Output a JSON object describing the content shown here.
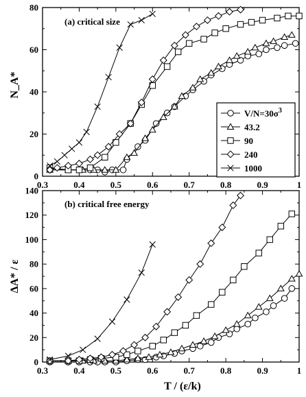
{
  "chart_data": [
    {
      "type": "line",
      "title": "(a) critical size",
      "xlabel": "",
      "ylabel": "N_A*",
      "xlim": [
        0.3,
        1.0
      ],
      "ylim": [
        0,
        80
      ],
      "xticks": [
        "0.3",
        "0.4",
        "0.5",
        "0.6",
        "0.7",
        "0.8",
        "0.9",
        "1"
      ],
      "yticks": [
        "0",
        "20",
        "40",
        "60",
        "80"
      ],
      "legend_position": "center-right",
      "series": [
        {
          "name": "V/N=30σ³",
          "legend_main": "V/N=30σ",
          "legend_sup": "3",
          "marker": "circle",
          "x": [
            0.32,
            0.43,
            0.45,
            0.47,
            0.49,
            0.52,
            0.53,
            0.56,
            0.58,
            0.61,
            0.64,
            0.66,
            0.69,
            0.71,
            0.74,
            0.76,
            0.79,
            0.81,
            0.84,
            0.86,
            0.89,
            0.91,
            0.94,
            0.96,
            0.99
          ],
          "y": [
            3,
            3,
            3,
            2,
            3,
            3,
            8,
            14,
            17,
            25,
            30,
            33,
            38,
            41,
            45,
            48,
            51,
            53,
            55,
            57,
            58,
            60,
            61,
            62,
            63
          ]
        },
        {
          "name": "43.2",
          "marker": "triangle",
          "x": [
            0.32,
            0.37,
            0.41,
            0.44,
            0.47,
            0.5,
            0.53,
            0.55,
            0.58,
            0.6,
            0.63,
            0.66,
            0.68,
            0.71,
            0.73,
            0.76,
            0.78,
            0.81,
            0.83,
            0.86,
            0.88,
            0.91,
            0.93,
            0.96,
            0.98
          ],
          "y": [
            3,
            3,
            3,
            3,
            3,
            3,
            9,
            11,
            18,
            22,
            28,
            33,
            38,
            42,
            46,
            49,
            52,
            55,
            57,
            59,
            61,
            63,
            64,
            66,
            67
          ]
        },
        {
          "name": "90",
          "marker": "square",
          "x": [
            0.32,
            0.37,
            0.4,
            0.43,
            0.47,
            0.5,
            0.54,
            0.57,
            0.6,
            0.64,
            0.67,
            0.7,
            0.74,
            0.77,
            0.8,
            0.84,
            0.87,
            0.9,
            0.94,
            0.97,
            1.0
          ],
          "y": [
            4,
            3,
            3,
            4,
            9,
            16,
            25,
            34,
            43,
            52,
            59,
            63,
            65,
            68,
            70,
            72,
            73,
            74,
            75,
            76,
            76
          ]
        },
        {
          "name": "240",
          "marker": "diamond",
          "x": [
            0.32,
            0.34,
            0.37,
            0.4,
            0.43,
            0.45,
            0.48,
            0.51,
            0.54,
            0.57,
            0.6,
            0.63,
            0.66,
            0.69,
            0.72,
            0.75,
            0.78,
            0.81,
            0.84
          ],
          "y": [
            3,
            4,
            5,
            6,
            8,
            10,
            14,
            20,
            25,
            35,
            46,
            55,
            62,
            67,
            71,
            74,
            76,
            78,
            79
          ]
        },
        {
          "name": "1000",
          "marker": "cross",
          "x": [
            0.32,
            0.34,
            0.36,
            0.38,
            0.4,
            0.42,
            0.45,
            0.48,
            0.51,
            0.54,
            0.57,
            0.6
          ],
          "y": [
            5,
            7,
            10,
            13,
            16,
            21,
            33,
            47,
            61,
            72,
            74,
            77
          ]
        }
      ]
    },
    {
      "type": "line",
      "title": "(b) critical free energy",
      "xlabel": "T / (ε/k)",
      "ylabel": "ΔA* / ε",
      "xlim": [
        0.3,
        1.0
      ],
      "ylim": [
        0,
        140
      ],
      "xticks": [
        "0.3",
        "0.4",
        "0.5",
        "0.6",
        "0.7",
        "0.8",
        "0.9",
        "1"
      ],
      "yticks": [
        "0",
        "20",
        "40",
        "60",
        "80",
        "100",
        "120",
        "140"
      ],
      "series": [
        {
          "name": "V/N=30σ³",
          "marker": "circle",
          "x": [
            0.32,
            0.37,
            0.4,
            0.43,
            0.45,
            0.47,
            0.5,
            0.53,
            0.56,
            0.58,
            0.61,
            0.63,
            0.66,
            0.68,
            0.71,
            0.73,
            0.76,
            0.78,
            0.81,
            0.83,
            0.86,
            0.88,
            0.91,
            0.93,
            0.96,
            0.98
          ],
          "y": [
            0,
            0,
            0,
            0,
            0,
            0,
            0,
            1,
            2,
            2,
            4,
            5,
            7,
            9,
            11,
            13,
            16,
            20,
            23,
            27,
            31,
            36,
            41,
            46,
            52,
            60
          ]
        },
        {
          "name": "43.2",
          "marker": "triangle",
          "x": [
            0.32,
            0.37,
            0.41,
            0.44,
            0.47,
            0.5,
            0.53,
            0.56,
            0.59,
            0.62,
            0.65,
            0.68,
            0.71,
            0.74,
            0.77,
            0.8,
            0.83,
            0.86,
            0.89,
            0.92,
            0.95,
            0.98,
            1.0
          ],
          "y": [
            1,
            1,
            1,
            1,
            1,
            1,
            2,
            3,
            4,
            6,
            8,
            11,
            14,
            17,
            21,
            26,
            31,
            38,
            45,
            52,
            60,
            68,
            72
          ]
        },
        {
          "name": "90",
          "marker": "square",
          "x": [
            0.32,
            0.37,
            0.4,
            0.43,
            0.46,
            0.5,
            0.53,
            0.56,
            0.6,
            0.63,
            0.66,
            0.69,
            0.72,
            0.76,
            0.79,
            0.82,
            0.85,
            0.89,
            0.92,
            0.95,
            0.98
          ],
          "y": [
            1,
            1,
            1,
            2,
            3,
            4,
            6,
            9,
            13,
            18,
            24,
            30,
            38,
            47,
            57,
            67,
            78,
            89,
            100,
            111,
            121
          ]
        },
        {
          "name": "240",
          "marker": "diamond",
          "x": [
            0.32,
            0.37,
            0.4,
            0.43,
            0.46,
            0.49,
            0.52,
            0.55,
            0.58,
            0.61,
            0.64,
            0.67,
            0.7,
            0.73,
            0.76,
            0.79,
            0.82,
            0.84
          ],
          "y": [
            1,
            1,
            2,
            3,
            4,
            6,
            9,
            14,
            20,
            29,
            41,
            53,
            67,
            80,
            97,
            110,
            128,
            136
          ]
        },
        {
          "name": "1000",
          "marker": "cross",
          "x": [
            0.32,
            0.37,
            0.41,
            0.45,
            0.49,
            0.53,
            0.57,
            0.6
          ],
          "y": [
            2,
            5,
            10,
            19,
            33,
            51,
            73,
            96
          ]
        }
      ]
    }
  ]
}
